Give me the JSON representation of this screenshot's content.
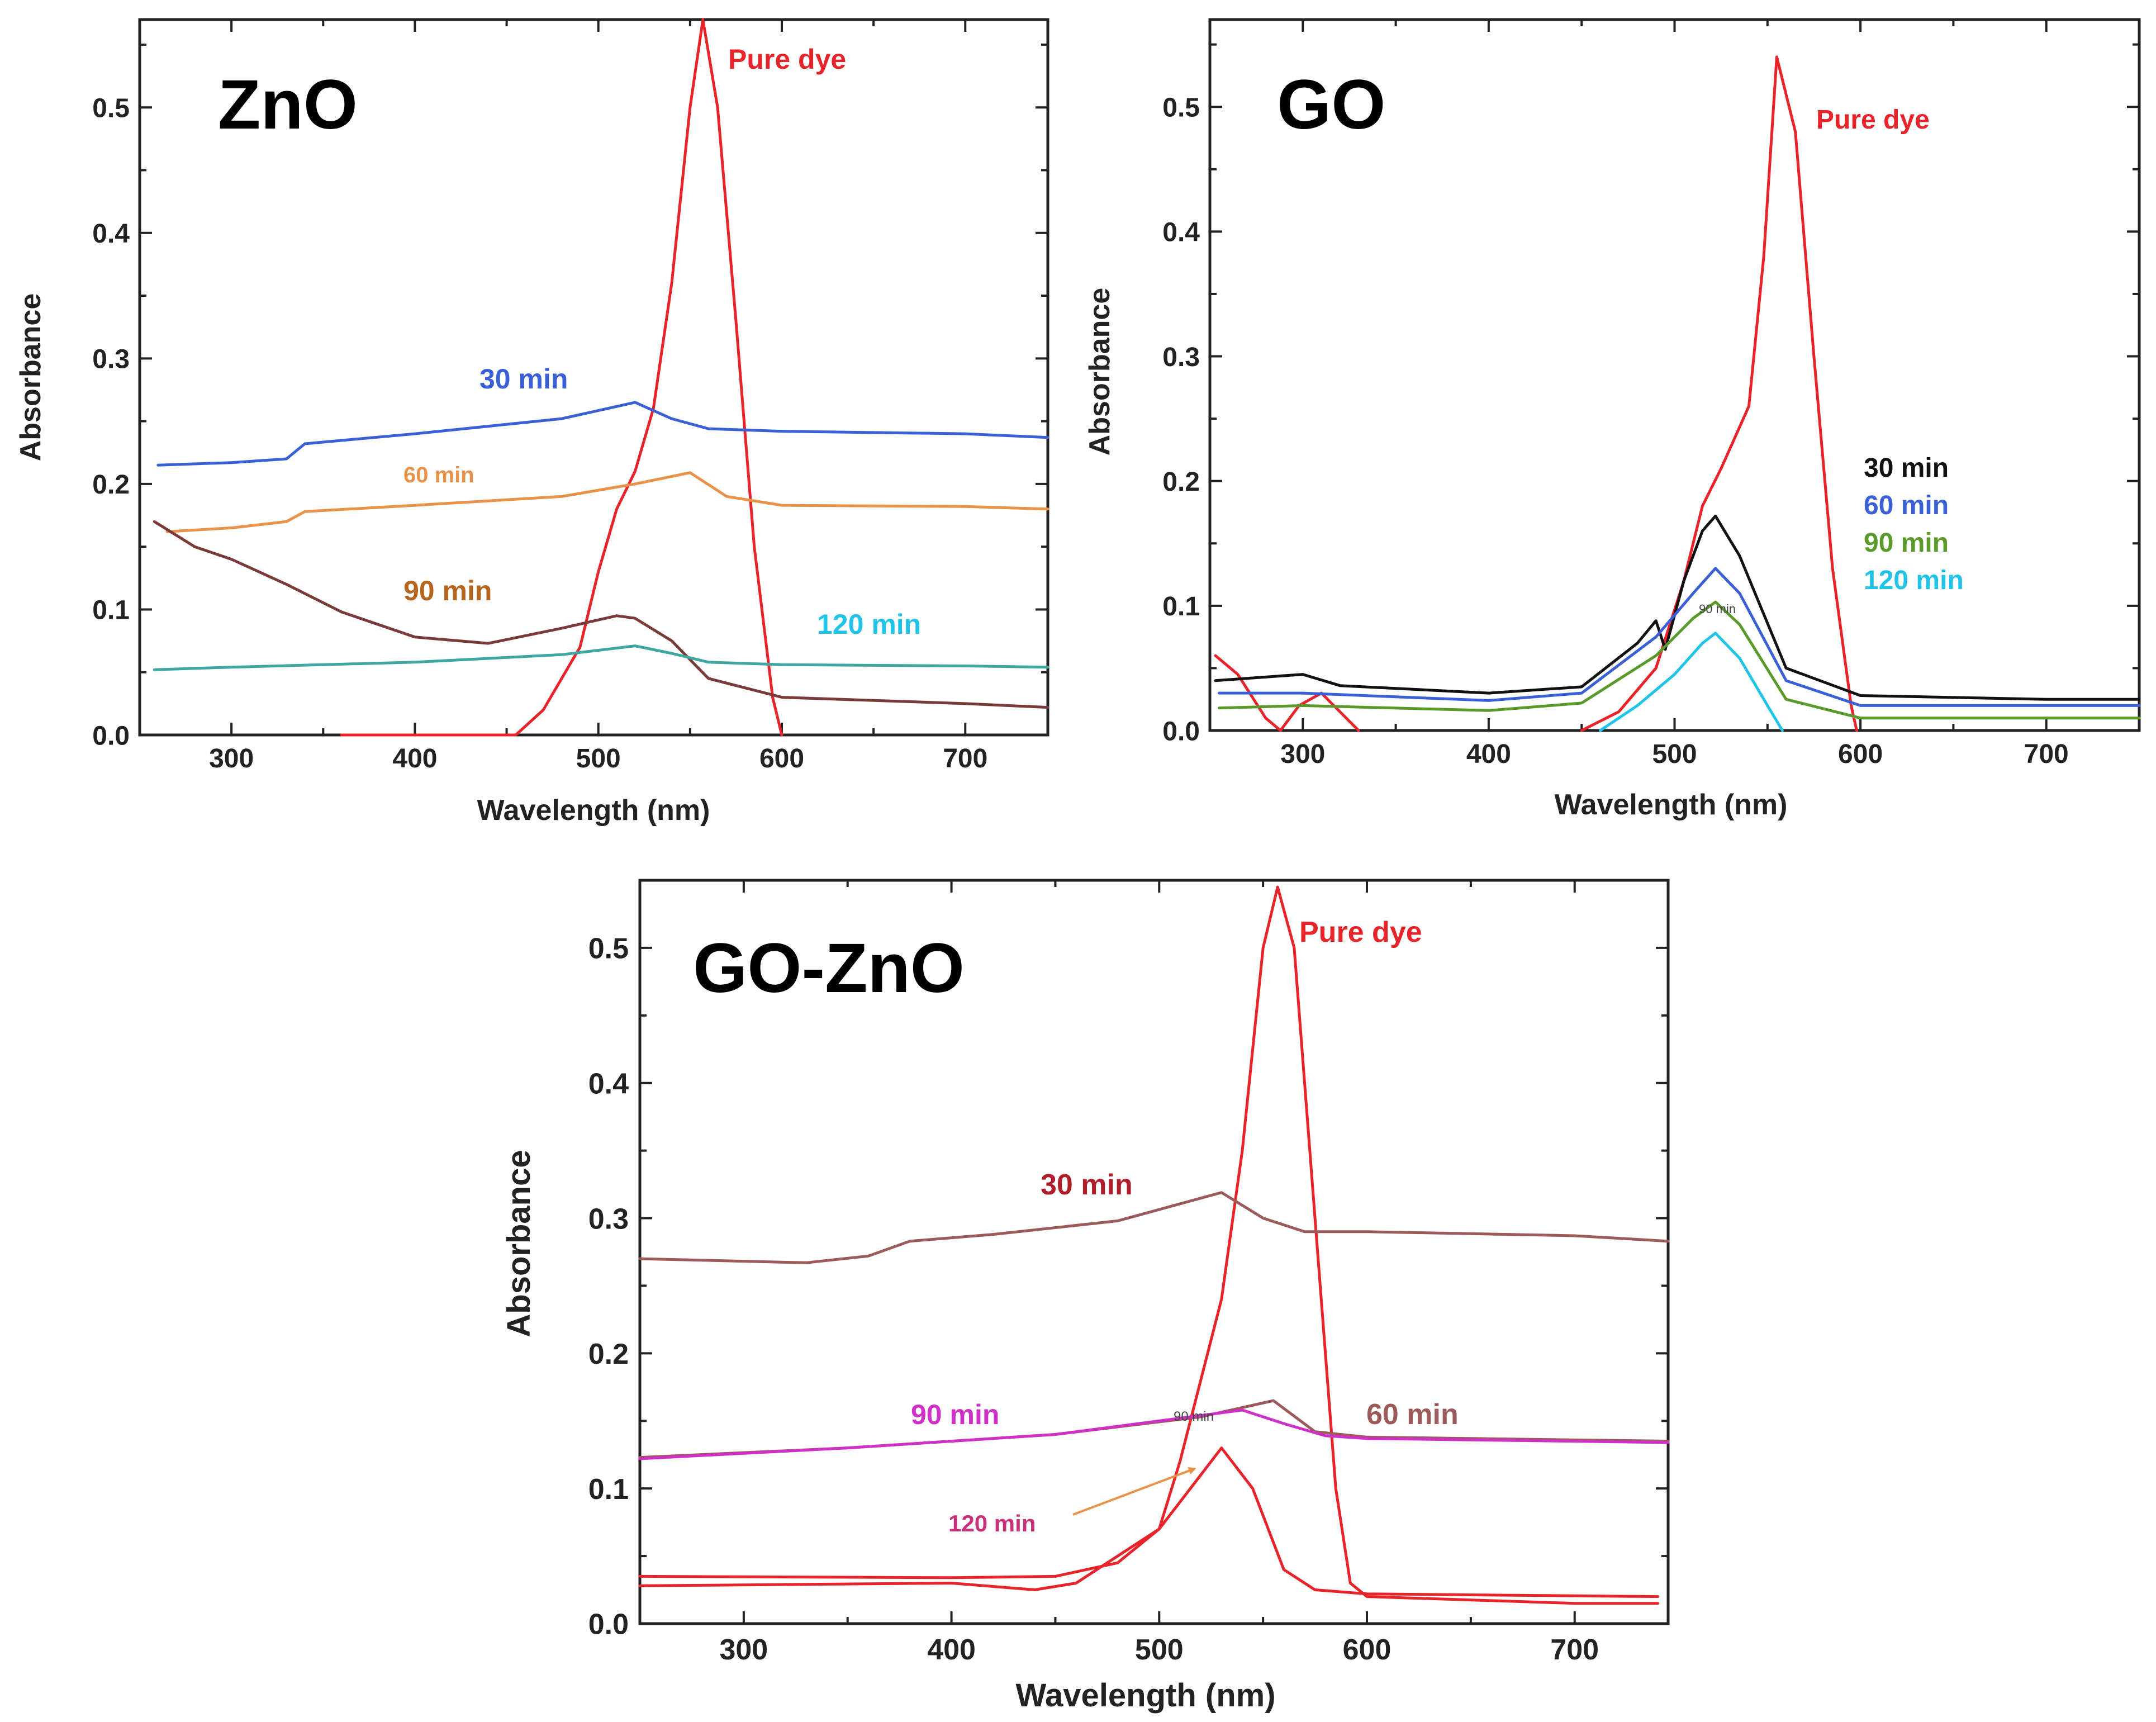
{
  "colors": {
    "pure_dye": "#e8242b",
    "blue": "#3b5fd6",
    "orange": "#e8924a",
    "brown_dark": "#7b3a3a",
    "teal": "#3fa7a0",
    "cyan": "#20c4e8",
    "black": "#111111",
    "green": "#5a9a2a",
    "rosy_brown": "#9c5a5a",
    "magenta": "#d030c8",
    "label_brown": "#b5651d",
    "label_red": "#b01e2a",
    "label_pink": "#c8307a"
  },
  "chart_data": [
    {
      "type": "line",
      "title": "ZnO",
      "xlabel": "Wavelength (nm)",
      "ylabel": "Absorbance",
      "xlim": [
        250,
        745
      ],
      "ylim": [
        0,
        0.57
      ],
      "xticks": [
        300,
        400,
        500,
        600,
        700
      ],
      "yticks": [
        0.0,
        0.1,
        0.2,
        0.3,
        0.4,
        0.5
      ],
      "series": [
        {
          "name": "Pure dye",
          "label": "Pure dye",
          "color": "#e8242b",
          "points": [
            [
              360,
              0
            ],
            [
              455,
              0
            ],
            [
              470,
              0.02
            ],
            [
              490,
              0.07
            ],
            [
              500,
              0.13
            ],
            [
              510,
              0.18
            ],
            [
              520,
              0.21
            ],
            [
              530,
              0.26
            ],
            [
              540,
              0.36
            ],
            [
              550,
              0.5
            ],
            [
              557,
              0.57
            ],
            [
              565,
              0.5
            ],
            [
              575,
              0.33
            ],
            [
              585,
              0.15
            ],
            [
              595,
              0.03
            ],
            [
              600,
              0
            ]
          ]
        },
        {
          "name": "30 min",
          "label": "30 min",
          "color": "#3b5fd6",
          "points": [
            [
              260,
              0.215
            ],
            [
              300,
              0.217
            ],
            [
              330,
              0.22
            ],
            [
              340,
              0.232
            ],
            [
              400,
              0.24
            ],
            [
              480,
              0.252
            ],
            [
              520,
              0.265
            ],
            [
              540,
              0.252
            ],
            [
              560,
              0.244
            ],
            [
              600,
              0.242
            ],
            [
              700,
              0.24
            ],
            [
              745,
              0.237
            ]
          ]
        },
        {
          "name": "60 min",
          "label": "60 min",
          "color": "#e8924a",
          "points": [
            [
              265,
              0.162
            ],
            [
              300,
              0.165
            ],
            [
              330,
              0.17
            ],
            [
              340,
              0.178
            ],
            [
              400,
              0.183
            ],
            [
              480,
              0.19
            ],
            [
              520,
              0.2
            ],
            [
              550,
              0.209
            ],
            [
              570,
              0.19
            ],
            [
              600,
              0.183
            ],
            [
              700,
              0.182
            ],
            [
              745,
              0.18
            ]
          ]
        },
        {
          "name": "90 min",
          "label": "90 min",
          "color": "#7b3a3a",
          "points": [
            [
              258,
              0.17
            ],
            [
              280,
              0.15
            ],
            [
              300,
              0.14
            ],
            [
              330,
              0.12
            ],
            [
              360,
              0.098
            ],
            [
              400,
              0.078
            ],
            [
              440,
              0.073
            ],
            [
              480,
              0.085
            ],
            [
              510,
              0.095
            ],
            [
              520,
              0.093
            ],
            [
              540,
              0.075
            ],
            [
              560,
              0.045
            ],
            [
              600,
              0.03
            ],
            [
              700,
              0.025
            ],
            [
              745,
              0.022
            ]
          ]
        },
        {
          "name": "120 min",
          "label": "120 min",
          "color": "#3fa7a0",
          "points": [
            [
              258,
              0.052
            ],
            [
              300,
              0.054
            ],
            [
              400,
              0.058
            ],
            [
              480,
              0.064
            ],
            [
              520,
              0.071
            ],
            [
              540,
              0.065
            ],
            [
              560,
              0.058
            ],
            [
              600,
              0.056
            ],
            [
              700,
              0.055
            ],
            [
              745,
              0.054
            ]
          ]
        }
      ]
    },
    {
      "type": "line",
      "title": "GO",
      "xlabel": "Wavelength (nm)",
      "ylabel": "Absorbance",
      "xlim": [
        250,
        750
      ],
      "ylim": [
        0,
        0.57
      ],
      "xticks": [
        300,
        400,
        500,
        600,
        700
      ],
      "yticks": [
        0.0,
        0.1,
        0.2,
        0.3,
        0.4,
        0.5
      ],
      "annotation": "90 min",
      "series": [
        {
          "name": "Pure dye",
          "label": "Pure dye",
          "color": "#e8242b",
          "points": [
            [
              450,
              0
            ],
            [
              470,
              0.015
            ],
            [
              490,
              0.05
            ],
            [
              505,
              0.12
            ],
            [
              515,
              0.18
            ],
            [
              525,
              0.21
            ],
            [
              540,
              0.26
            ],
            [
              548,
              0.38
            ],
            [
              555,
              0.54
            ],
            [
              565,
              0.48
            ],
            [
              575,
              0.3
            ],
            [
              585,
              0.13
            ],
            [
              595,
              0.02
            ],
            [
              598,
              0
            ]
          ]
        },
        {
          "name": "Pure dye (UV)",
          "label": "",
          "color": "#e8242b",
          "points": [
            [
              253,
              0.06
            ],
            [
              265,
              0.045
            ],
            [
              280,
              0.01
            ],
            [
              288,
              0
            ],
            [
              298,
              0.02
            ],
            [
              310,
              0.03
            ],
            [
              320,
              0.015
            ],
            [
              330,
              0
            ]
          ]
        },
        {
          "name": "30 min",
          "label": "30 min",
          "color": "#111111",
          "points": [
            [
              253,
              0.04
            ],
            [
              300,
              0.045
            ],
            [
              320,
              0.036
            ],
            [
              400,
              0.03
            ],
            [
              450,
              0.035
            ],
            [
              480,
              0.07
            ],
            [
              490,
              0.088
            ],
            [
              495,
              0.065
            ],
            [
              505,
              0.12
            ],
            [
              515,
              0.16
            ],
            [
              522,
              0.172
            ],
            [
              535,
              0.14
            ],
            [
              560,
              0.05
            ],
            [
              600,
              0.028
            ],
            [
              700,
              0.025
            ],
            [
              750,
              0.025
            ]
          ]
        },
        {
          "name": "60 min",
          "label": "60 min",
          "color": "#3b5fd6",
          "points": [
            [
              255,
              0.03
            ],
            [
              300,
              0.03
            ],
            [
              400,
              0.024
            ],
            [
              450,
              0.03
            ],
            [
              490,
              0.075
            ],
            [
              510,
              0.11
            ],
            [
              522,
              0.13
            ],
            [
              535,
              0.11
            ],
            [
              560,
              0.04
            ],
            [
              600,
              0.02
            ],
            [
              700,
              0.02
            ],
            [
              750,
              0.02
            ]
          ]
        },
        {
          "name": "90 min",
          "label": "90 min",
          "color": "#5a9a2a",
          "points": [
            [
              255,
              0.018
            ],
            [
              300,
              0.02
            ],
            [
              400,
              0.016
            ],
            [
              450,
              0.022
            ],
            [
              490,
              0.06
            ],
            [
              510,
              0.09
            ],
            [
              522,
              0.103
            ],
            [
              535,
              0.085
            ],
            [
              560,
              0.025
            ],
            [
              600,
              0.01
            ],
            [
              700,
              0.01
            ],
            [
              750,
              0.01
            ]
          ]
        },
        {
          "name": "120 min",
          "label": "120 min",
          "color": "#20c4e8",
          "points": [
            [
              460,
              0
            ],
            [
              480,
              0.02
            ],
            [
              500,
              0.045
            ],
            [
              515,
              0.07
            ],
            [
              522,
              0.078
            ],
            [
              535,
              0.058
            ],
            [
              550,
              0.02
            ],
            [
              558,
              0
            ]
          ]
        }
      ]
    },
    {
      "type": "line",
      "title": "GO-ZnO",
      "xlabel": "Wavelength (nm)",
      "ylabel": "Absorbance",
      "xlim": [
        250,
        745
      ],
      "ylim": [
        0,
        0.55
      ],
      "xticks": [
        300,
        400,
        500,
        600,
        700
      ],
      "yticks": [
        0.0,
        0.1,
        0.2,
        0.3,
        0.4,
        0.5
      ],
      "annotation": "90 min",
      "series": [
        {
          "name": "Pure dye",
          "label": "Pure dye",
          "color": "#e8242b",
          "points": [
            [
              250,
              0.035
            ],
            [
              400,
              0.034
            ],
            [
              450,
              0.035
            ],
            [
              480,
              0.045
            ],
            [
              500,
              0.07
            ],
            [
              510,
              0.12
            ],
            [
              520,
              0.18
            ],
            [
              530,
              0.24
            ],
            [
              540,
              0.35
            ],
            [
              550,
              0.5
            ],
            [
              557,
              0.545
            ],
            [
              565,
              0.5
            ],
            [
              575,
              0.3
            ],
            [
              585,
              0.1
            ],
            [
              592,
              0.03
            ],
            [
              600,
              0.02
            ],
            [
              700,
              0.015
            ],
            [
              740,
              0.015
            ]
          ]
        },
        {
          "name": "120 min",
          "label": "120 min",
          "color": "#e8242b",
          "points": [
            [
              250,
              0.028
            ],
            [
              400,
              0.03
            ],
            [
              440,
              0.025
            ],
            [
              460,
              0.03
            ],
            [
              480,
              0.05
            ],
            [
              500,
              0.07
            ],
            [
              515,
              0.1
            ],
            [
              530,
              0.13
            ],
            [
              545,
              0.1
            ],
            [
              560,
              0.04
            ],
            [
              575,
              0.025
            ],
            [
              600,
              0.022
            ],
            [
              740,
              0.02
            ]
          ]
        },
        {
          "name": "30 min",
          "label": "30 min",
          "color": "#9c5a5a",
          "points": [
            [
              250,
              0.27
            ],
            [
              330,
              0.267
            ],
            [
              360,
              0.272
            ],
            [
              380,
              0.283
            ],
            [
              420,
              0.288
            ],
            [
              480,
              0.298
            ],
            [
              530,
              0.319
            ],
            [
              550,
              0.3
            ],
            [
              570,
              0.29
            ],
            [
              600,
              0.29
            ],
            [
              700,
              0.287
            ],
            [
              745,
              0.283
            ]
          ]
        },
        {
          "name": "60 min",
          "label": "60 min",
          "color": "#9c5a5a",
          "points": [
            [
              250,
              0.123
            ],
            [
              350,
              0.13
            ],
            [
              450,
              0.14
            ],
            [
              520,
              0.153
            ],
            [
              555,
              0.165
            ],
            [
              575,
              0.142
            ],
            [
              600,
              0.138
            ],
            [
              745,
              0.135
            ]
          ]
        },
        {
          "name": "90 min",
          "label": "90 min",
          "color": "#d030c8",
          "points": [
            [
              250,
              0.122
            ],
            [
              350,
              0.13
            ],
            [
              450,
              0.14
            ],
            [
              540,
              0.158
            ],
            [
              560,
              0.148
            ],
            [
              580,
              0.139
            ],
            [
              600,
              0.137
            ],
            [
              745,
              0.134
            ]
          ]
        }
      ]
    }
  ]
}
